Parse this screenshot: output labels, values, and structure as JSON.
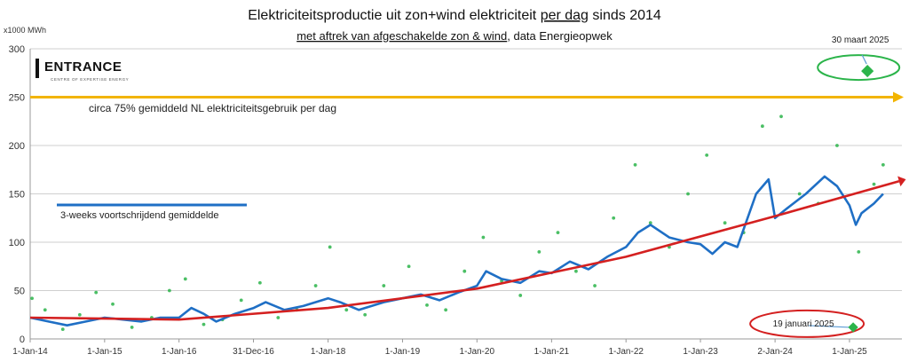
{
  "chart_data": {
    "type": "scatter",
    "title_parts": [
      {
        "text": "Elektriciteitsproductie uit zon+wind elektriciteit ",
        "underline": false
      },
      {
        "text": "per dag",
        "underline": true
      },
      {
        "text": " sinds 2014",
        "underline": false
      }
    ],
    "subtitle_parts": [
      {
        "text": "met aftrek van afgeschakelde zon & wind",
        "underline": true
      },
      {
        "text": ", data Energieopwek",
        "underline": false
      }
    ],
    "ylabel": "x1000 MWh",
    "ylim": [
      0,
      300
    ],
    "y_ticks": [
      "0",
      "50",
      "100",
      "150",
      "200",
      "250",
      "300"
    ],
    "x_ticks": [
      {
        "label": "1-Jan-14",
        "date": "2014-01-01"
      },
      {
        "label": "1-Jan-15",
        "date": "2015-01-01"
      },
      {
        "label": "1-Jan-16",
        "date": "2016-01-01"
      },
      {
        "label": "31-Dec-16",
        "date": "2016-12-31"
      },
      {
        "label": "1-Jan-18",
        "date": "2018-01-01"
      },
      {
        "label": "1-Jan-19",
        "date": "2019-01-01"
      },
      {
        "label": "1-Jan-20",
        "date": "2020-01-01"
      },
      {
        "label": "1-Jan-21",
        "date": "2021-01-01"
      },
      {
        "label": "1-Jan-22",
        "date": "2022-01-01"
      },
      {
        "label": "1-Jan-23",
        "date": "2023-01-01"
      },
      {
        "label": "2-Jan-24",
        "date": "2024-01-02"
      },
      {
        "label": "1-Jan-25",
        "date": "2025-01-01"
      }
    ],
    "x_range": [
      "2014-01-01",
      "2025-09-15"
    ],
    "grid": true,
    "logo": {
      "name": "ENTRANCE",
      "tagline": "CENTRE OF EXPERTISE ENERGY"
    },
    "reference_line": {
      "label": "circa 75% gemiddeld NL elektriciteitsgebruik per dag",
      "value": 250,
      "color": "#f2b400"
    },
    "legend": {
      "label": "3-weeks voortschrijdend gemiddelde",
      "color": "#1f6fc5"
    },
    "annotations": [
      {
        "label": "30 maart 2025",
        "date": "2025-03-30",
        "value": 277
      },
      {
        "label": "19 januari 2025",
        "date": "2025-01-19",
        "value": 12
      }
    ],
    "series": [
      {
        "kind": "moving_average",
        "color": "#1f6fc5",
        "points": [
          [
            "2014-01-01",
            22
          ],
          [
            "2014-04-01",
            18
          ],
          [
            "2014-07-01",
            14
          ],
          [
            "2014-10-01",
            18
          ],
          [
            "2015-01-01",
            22
          ],
          [
            "2015-04-01",
            20
          ],
          [
            "2015-07-01",
            18
          ],
          [
            "2015-10-01",
            22
          ],
          [
            "2016-01-01",
            22
          ],
          [
            "2016-03-01",
            32
          ],
          [
            "2016-05-01",
            26
          ],
          [
            "2016-07-01",
            18
          ],
          [
            "2016-10-01",
            26
          ],
          [
            "2017-01-01",
            32
          ],
          [
            "2017-03-01",
            38
          ],
          [
            "2017-06-01",
            30
          ],
          [
            "2017-09-01",
            34
          ],
          [
            "2018-01-01",
            42
          ],
          [
            "2018-03-01",
            38
          ],
          [
            "2018-06-01",
            30
          ],
          [
            "2018-10-01",
            38
          ],
          [
            "2019-01-01",
            42
          ],
          [
            "2019-04-01",
            46
          ],
          [
            "2019-07-01",
            40
          ],
          [
            "2019-10-01",
            48
          ],
          [
            "2020-01-01",
            55
          ],
          [
            "2020-02-15",
            70
          ],
          [
            "2020-05-01",
            62
          ],
          [
            "2020-08-01",
            58
          ],
          [
            "2020-11-01",
            70
          ],
          [
            "2021-01-01",
            68
          ],
          [
            "2021-04-01",
            80
          ],
          [
            "2021-07-01",
            72
          ],
          [
            "2021-10-01",
            85
          ],
          [
            "2022-01-01",
            95
          ],
          [
            "2022-03-01",
            110
          ],
          [
            "2022-05-01",
            118
          ],
          [
            "2022-08-01",
            105
          ],
          [
            "2022-11-01",
            100
          ],
          [
            "2023-01-01",
            98
          ],
          [
            "2023-03-01",
            88
          ],
          [
            "2023-05-01",
            100
          ],
          [
            "2023-07-01",
            95
          ],
          [
            "2023-10-01",
            150
          ],
          [
            "2023-12-01",
            165
          ],
          [
            "2024-01-02",
            125
          ],
          [
            "2024-03-01",
            135
          ],
          [
            "2024-06-01",
            150
          ],
          [
            "2024-09-01",
            168
          ],
          [
            "2024-11-01",
            158
          ],
          [
            "2025-01-01",
            138
          ],
          [
            "2025-02-01",
            118
          ],
          [
            "2025-03-01",
            130
          ],
          [
            "2025-05-01",
            140
          ],
          [
            "2025-06-15",
            150
          ]
        ]
      },
      {
        "kind": "trend",
        "color": "#d42020",
        "points": [
          [
            "2014-01-01",
            22
          ],
          [
            "2016-01-01",
            20
          ],
          [
            "2018-01-01",
            32
          ],
          [
            "2020-01-01",
            52
          ],
          [
            "2022-01-01",
            85
          ],
          [
            "2024-01-02",
            127
          ],
          [
            "2025-09-01",
            163
          ]
        ]
      },
      {
        "kind": "daily",
        "color": "#2bb44a",
        "points": [
          [
            "2014-01-10",
            42
          ],
          [
            "2014-03-15",
            30
          ],
          [
            "2014-06-10",
            10
          ],
          [
            "2014-09-01",
            25
          ],
          [
            "2014-11-20",
            48
          ],
          [
            "2015-02-10",
            36
          ],
          [
            "2015-05-15",
            12
          ],
          [
            "2015-08-20",
            22
          ],
          [
            "2015-11-15",
            50
          ],
          [
            "2016-02-01",
            62
          ],
          [
            "2016-05-01",
            15
          ],
          [
            "2016-08-01",
            20
          ],
          [
            "2016-11-01",
            40
          ],
          [
            "2017-02-01",
            58
          ],
          [
            "2017-05-01",
            22
          ],
          [
            "2017-08-01",
            30
          ],
          [
            "2017-11-01",
            55
          ],
          [
            "2018-01-10",
            95
          ],
          [
            "2018-04-01",
            30
          ],
          [
            "2018-07-01",
            25
          ],
          [
            "2018-10-01",
            55
          ],
          [
            "2019-02-01",
            75
          ],
          [
            "2019-05-01",
            35
          ],
          [
            "2019-08-01",
            30
          ],
          [
            "2019-11-01",
            70
          ],
          [
            "2020-02-01",
            105
          ],
          [
            "2020-05-01",
            60
          ],
          [
            "2020-08-01",
            45
          ],
          [
            "2020-11-01",
            90
          ],
          [
            "2021-02-01",
            110
          ],
          [
            "2021-05-01",
            70
          ],
          [
            "2021-08-01",
            55
          ],
          [
            "2021-11-01",
            125
          ],
          [
            "2022-02-15",
            180
          ],
          [
            "2022-05-01",
            120
          ],
          [
            "2022-08-01",
            95
          ],
          [
            "2022-11-01",
            150
          ],
          [
            "2023-02-01",
            190
          ],
          [
            "2023-05-01",
            120
          ],
          [
            "2023-08-01",
            110
          ],
          [
            "2023-11-01",
            220
          ],
          [
            "2024-02-01",
            230
          ],
          [
            "2024-05-01",
            150
          ],
          [
            "2024-08-01",
            140
          ],
          [
            "2024-11-01",
            200
          ],
          [
            "2025-01-19",
            12
          ],
          [
            "2025-02-15",
            90
          ],
          [
            "2025-03-30",
            277
          ],
          [
            "2025-05-01",
            160
          ],
          [
            "2025-06-15",
            180
          ]
        ]
      }
    ]
  }
}
